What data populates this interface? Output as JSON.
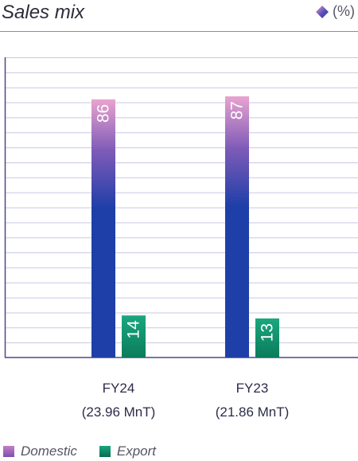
{
  "header": {
    "title": "Sales mix",
    "unit": "(%)",
    "unit_icon": "diamond-icon"
  },
  "chart_data": {
    "type": "bar",
    "categories": [
      "FY24",
      "FY23"
    ],
    "category_sublabels": [
      "(23.96 MnT)",
      "(21.86 MnT)"
    ],
    "series": [
      {
        "name": "Domestic",
        "values": [
          86,
          87
        ],
        "color": "#1f3fa8",
        "color_top": "#e9a3cf"
      },
      {
        "name": "Export",
        "values": [
          14,
          13
        ],
        "color": "#0b7c5c",
        "color_top": "#1aa77f"
      }
    ],
    "ylim": [
      0,
      100
    ],
    "grid": true,
    "legend_position": "bottom-left",
    "axis_color": "#4a4a8a",
    "grid_color": "#c8c8e6"
  }
}
